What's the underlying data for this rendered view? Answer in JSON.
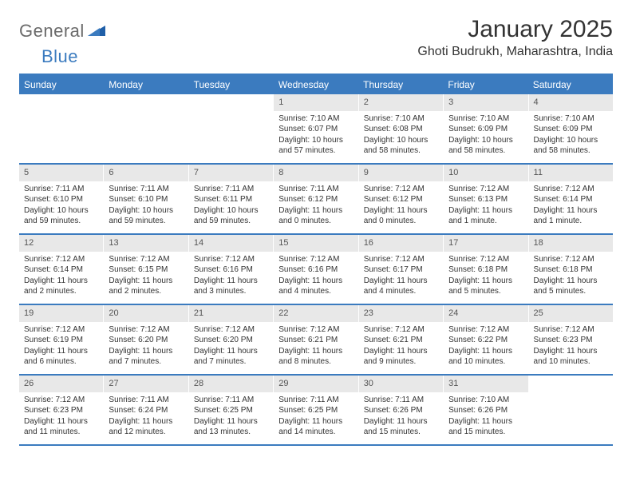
{
  "brand": {
    "part1": "General",
    "part2": "Blue"
  },
  "title": "January 2025",
  "location": "Ghoti Budrukh, Maharashtra, India",
  "colors": {
    "accent": "#3b7bbf",
    "header_text": "#ffffff",
    "daynum_bg": "#e8e8e8",
    "text": "#333333",
    "logo_gray": "#6b6b6b"
  },
  "weekdays": [
    "Sunday",
    "Monday",
    "Tuesday",
    "Wednesday",
    "Thursday",
    "Friday",
    "Saturday"
  ],
  "weeks": [
    [
      null,
      null,
      null,
      {
        "n": "1",
        "sr": "Sunrise: 7:10 AM",
        "ss": "Sunset: 6:07 PM",
        "d1": "Daylight: 10 hours",
        "d2": "and 57 minutes."
      },
      {
        "n": "2",
        "sr": "Sunrise: 7:10 AM",
        "ss": "Sunset: 6:08 PM",
        "d1": "Daylight: 10 hours",
        "d2": "and 58 minutes."
      },
      {
        "n": "3",
        "sr": "Sunrise: 7:10 AM",
        "ss": "Sunset: 6:09 PM",
        "d1": "Daylight: 10 hours",
        "d2": "and 58 minutes."
      },
      {
        "n": "4",
        "sr": "Sunrise: 7:10 AM",
        "ss": "Sunset: 6:09 PM",
        "d1": "Daylight: 10 hours",
        "d2": "and 58 minutes."
      }
    ],
    [
      {
        "n": "5",
        "sr": "Sunrise: 7:11 AM",
        "ss": "Sunset: 6:10 PM",
        "d1": "Daylight: 10 hours",
        "d2": "and 59 minutes."
      },
      {
        "n": "6",
        "sr": "Sunrise: 7:11 AM",
        "ss": "Sunset: 6:10 PM",
        "d1": "Daylight: 10 hours",
        "d2": "and 59 minutes."
      },
      {
        "n": "7",
        "sr": "Sunrise: 7:11 AM",
        "ss": "Sunset: 6:11 PM",
        "d1": "Daylight: 10 hours",
        "d2": "and 59 minutes."
      },
      {
        "n": "8",
        "sr": "Sunrise: 7:11 AM",
        "ss": "Sunset: 6:12 PM",
        "d1": "Daylight: 11 hours",
        "d2": "and 0 minutes."
      },
      {
        "n": "9",
        "sr": "Sunrise: 7:12 AM",
        "ss": "Sunset: 6:12 PM",
        "d1": "Daylight: 11 hours",
        "d2": "and 0 minutes."
      },
      {
        "n": "10",
        "sr": "Sunrise: 7:12 AM",
        "ss": "Sunset: 6:13 PM",
        "d1": "Daylight: 11 hours",
        "d2": "and 1 minute."
      },
      {
        "n": "11",
        "sr": "Sunrise: 7:12 AM",
        "ss": "Sunset: 6:14 PM",
        "d1": "Daylight: 11 hours",
        "d2": "and 1 minute."
      }
    ],
    [
      {
        "n": "12",
        "sr": "Sunrise: 7:12 AM",
        "ss": "Sunset: 6:14 PM",
        "d1": "Daylight: 11 hours",
        "d2": "and 2 minutes."
      },
      {
        "n": "13",
        "sr": "Sunrise: 7:12 AM",
        "ss": "Sunset: 6:15 PM",
        "d1": "Daylight: 11 hours",
        "d2": "and 2 minutes."
      },
      {
        "n": "14",
        "sr": "Sunrise: 7:12 AM",
        "ss": "Sunset: 6:16 PM",
        "d1": "Daylight: 11 hours",
        "d2": "and 3 minutes."
      },
      {
        "n": "15",
        "sr": "Sunrise: 7:12 AM",
        "ss": "Sunset: 6:16 PM",
        "d1": "Daylight: 11 hours",
        "d2": "and 4 minutes."
      },
      {
        "n": "16",
        "sr": "Sunrise: 7:12 AM",
        "ss": "Sunset: 6:17 PM",
        "d1": "Daylight: 11 hours",
        "d2": "and 4 minutes."
      },
      {
        "n": "17",
        "sr": "Sunrise: 7:12 AM",
        "ss": "Sunset: 6:18 PM",
        "d1": "Daylight: 11 hours",
        "d2": "and 5 minutes."
      },
      {
        "n": "18",
        "sr": "Sunrise: 7:12 AM",
        "ss": "Sunset: 6:18 PM",
        "d1": "Daylight: 11 hours",
        "d2": "and 5 minutes."
      }
    ],
    [
      {
        "n": "19",
        "sr": "Sunrise: 7:12 AM",
        "ss": "Sunset: 6:19 PM",
        "d1": "Daylight: 11 hours",
        "d2": "and 6 minutes."
      },
      {
        "n": "20",
        "sr": "Sunrise: 7:12 AM",
        "ss": "Sunset: 6:20 PM",
        "d1": "Daylight: 11 hours",
        "d2": "and 7 minutes."
      },
      {
        "n": "21",
        "sr": "Sunrise: 7:12 AM",
        "ss": "Sunset: 6:20 PM",
        "d1": "Daylight: 11 hours",
        "d2": "and 7 minutes."
      },
      {
        "n": "22",
        "sr": "Sunrise: 7:12 AM",
        "ss": "Sunset: 6:21 PM",
        "d1": "Daylight: 11 hours",
        "d2": "and 8 minutes."
      },
      {
        "n": "23",
        "sr": "Sunrise: 7:12 AM",
        "ss": "Sunset: 6:21 PM",
        "d1": "Daylight: 11 hours",
        "d2": "and 9 minutes."
      },
      {
        "n": "24",
        "sr": "Sunrise: 7:12 AM",
        "ss": "Sunset: 6:22 PM",
        "d1": "Daylight: 11 hours",
        "d2": "and 10 minutes."
      },
      {
        "n": "25",
        "sr": "Sunrise: 7:12 AM",
        "ss": "Sunset: 6:23 PM",
        "d1": "Daylight: 11 hours",
        "d2": "and 10 minutes."
      }
    ],
    [
      {
        "n": "26",
        "sr": "Sunrise: 7:12 AM",
        "ss": "Sunset: 6:23 PM",
        "d1": "Daylight: 11 hours",
        "d2": "and 11 minutes."
      },
      {
        "n": "27",
        "sr": "Sunrise: 7:11 AM",
        "ss": "Sunset: 6:24 PM",
        "d1": "Daylight: 11 hours",
        "d2": "and 12 minutes."
      },
      {
        "n": "28",
        "sr": "Sunrise: 7:11 AM",
        "ss": "Sunset: 6:25 PM",
        "d1": "Daylight: 11 hours",
        "d2": "and 13 minutes."
      },
      {
        "n": "29",
        "sr": "Sunrise: 7:11 AM",
        "ss": "Sunset: 6:25 PM",
        "d1": "Daylight: 11 hours",
        "d2": "and 14 minutes."
      },
      {
        "n": "30",
        "sr": "Sunrise: 7:11 AM",
        "ss": "Sunset: 6:26 PM",
        "d1": "Daylight: 11 hours",
        "d2": "and 15 minutes."
      },
      {
        "n": "31",
        "sr": "Sunrise: 7:10 AM",
        "ss": "Sunset: 6:26 PM",
        "d1": "Daylight: 11 hours",
        "d2": "and 15 minutes."
      },
      null
    ]
  ]
}
